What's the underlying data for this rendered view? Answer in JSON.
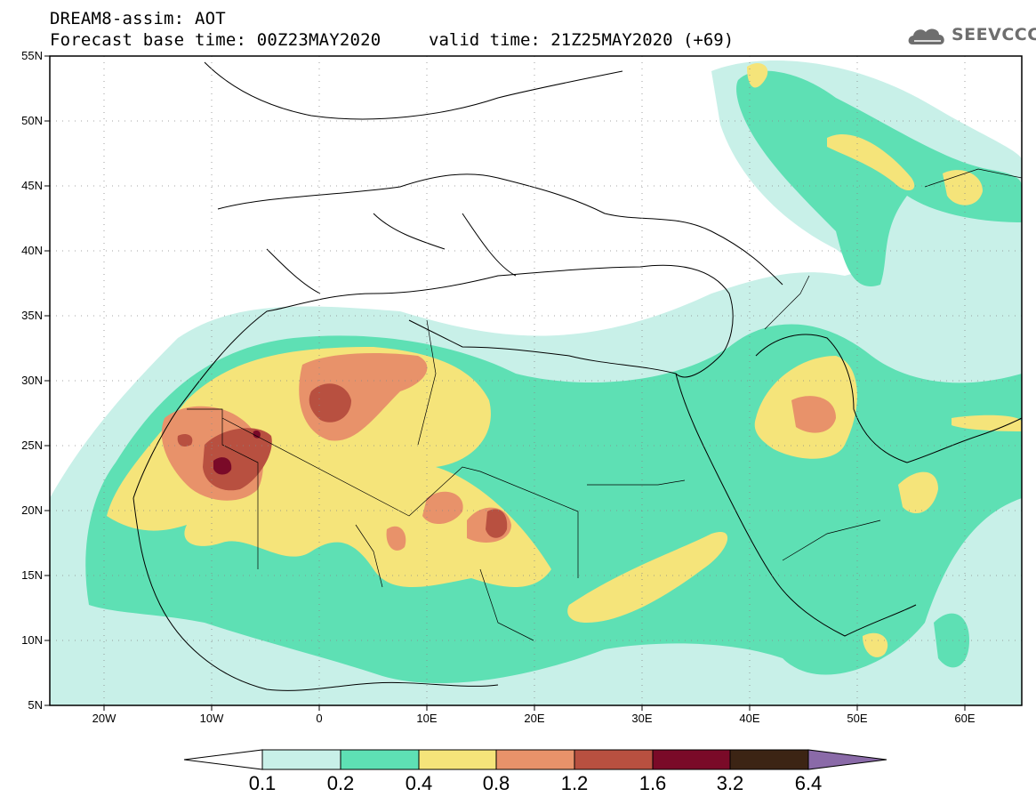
{
  "header": {
    "title_line1": "DREAM8-assim: AOT",
    "title_line2": "Forecast base time: 00Z23MAY2020",
    "valid_time": "valid time: 21Z25MAY2020 (+69)"
  },
  "logo": {
    "text": "SEEVCCC",
    "icon": "cloud-icon"
  },
  "map": {
    "lat_labels": [
      "55N",
      "50N",
      "45N",
      "40N",
      "35N",
      "30N",
      "25N",
      "20N",
      "15N",
      "10N",
      "5N"
    ],
    "lon_labels": [
      "20W",
      "10W",
      "0",
      "10E",
      "20E",
      "30E",
      "40E",
      "50E",
      "60E"
    ]
  },
  "colorbar": {
    "labels": [
      "0.1",
      "0.2",
      "0.4",
      "0.8",
      "1.2",
      "1.6",
      "3.2",
      "6.4"
    ],
    "colors": [
      "#c8f0e8",
      "#5ee0b4",
      "#f5e47a",
      "#e8926a",
      "#b85040",
      "#7a0a28",
      "#3c2414",
      "#8a6aa8"
    ]
  }
}
